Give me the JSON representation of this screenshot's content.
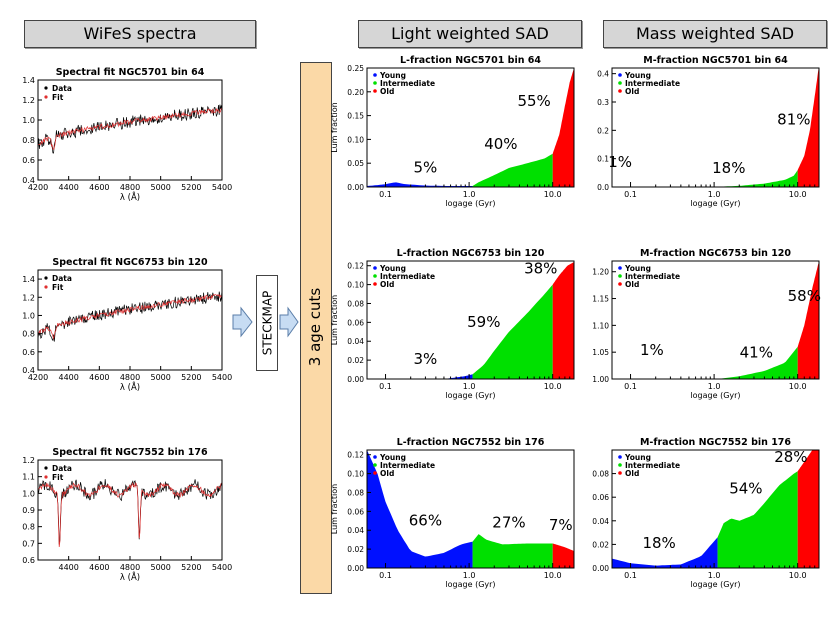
{
  "headers": {
    "spectra": "WiFeS spectra",
    "light": "Light weighted SAD",
    "mass": "Mass weighted SAD"
  },
  "side_label": "3 age cuts",
  "method_label": "STECKMAP",
  "colors": {
    "young": "#0010ff",
    "intermediate": "#00e000",
    "old": "#ff0000",
    "data": "#000000",
    "fit": "#e03030"
  },
  "chart_data": [
    {
      "id": "spec1",
      "type": "line",
      "title": "Spectral fit NGC5701 bin 64",
      "xlabel": "λ (Å)",
      "ylabel": "",
      "xlim": [
        4200,
        5400
      ],
      "ylim": [
        0.4,
        1.4
      ],
      "xticks": [
        4200,
        4400,
        4600,
        4800,
        5000,
        5200,
        5400
      ],
      "yticks": [
        0.4,
        0.6,
        0.8,
        1.0,
        1.2,
        1.4
      ],
      "yfmt": 1,
      "legend": [
        "Data",
        "Fit"
      ],
      "seed": 1,
      "features": []
    },
    {
      "id": "spec2",
      "type": "line",
      "title": "Spectral fit NGC6753 bin 120",
      "xlabel": "λ (Å)",
      "ylabel": "",
      "xlim": [
        4200,
        5400
      ],
      "ylim": [
        0.4,
        1.5
      ],
      "xticks": [
        4200,
        4400,
        4600,
        4800,
        5000,
        5200,
        5400
      ],
      "yticks": [
        0.4,
        0.6,
        0.8,
        1.0,
        1.2,
        1.4
      ],
      "yfmt": 1,
      "legend": [
        "Data",
        "Fit"
      ],
      "seed": 2,
      "features": []
    },
    {
      "id": "spec3",
      "type": "line",
      "title": "Spectral fit NGC7552 bin 176",
      "xlabel": "λ (Å)",
      "ylabel": "",
      "xlim": [
        4200,
        5400
      ],
      "ylim": [
        0.6,
        1.2
      ],
      "xticks": [
        4400,
        4600,
        4800,
        5000,
        5200,
        5400
      ],
      "yticks": [
        0.6,
        0.7,
        0.8,
        0.9,
        1.0,
        1.1,
        1.2
      ],
      "yfmt": 1,
      "legend": [
        "Data",
        "Fit"
      ],
      "seed": 3,
      "features": [
        4340,
        4861
      ]
    },
    {
      "id": "L1",
      "type": "area",
      "title": "L-fraction NGC5701 bin 64",
      "xlabel": "logage (Gyr)",
      "ylabel": "Lum fraction",
      "ylim": [
        0,
        0.25
      ],
      "yticks": [
        0,
        0.05,
        0.1,
        0.15,
        0.2,
        0.25
      ],
      "yfmt": 2,
      "legend": [
        "Young",
        "Intermediate",
        "Old"
      ],
      "curve": [
        [
          0.06,
          0.002
        ],
        [
          0.08,
          0.004
        ],
        [
          0.1,
          0.006
        ],
        [
          0.13,
          0.01
        ],
        [
          0.17,
          0.006
        ],
        [
          0.3,
          0.003
        ],
        [
          0.6,
          0.002
        ],
        [
          1.1,
          0.002
        ],
        [
          1.3,
          0.01
        ],
        [
          2,
          0.025
        ],
        [
          3,
          0.04
        ],
        [
          5,
          0.05
        ],
        [
          8,
          0.06
        ],
        [
          10,
          0.07
        ],
        [
          12,
          0.11
        ],
        [
          14,
          0.17
        ],
        [
          16,
          0.22
        ],
        [
          18,
          0.25
        ]
      ],
      "percentages": [
        {
          "text": "5%",
          "x": 0.3,
          "y": 0.03
        },
        {
          "text": "40%",
          "x": 2.4,
          "y": 0.08
        },
        {
          "text": "55%",
          "x": 6,
          "y": 0.17
        }
      ]
    },
    {
      "id": "M1",
      "type": "area",
      "title": "M-fraction NGC5701 bin 64",
      "xlabel": "logage (Gyr)",
      "ylabel": "",
      "ylim": [
        0,
        0.42
      ],
      "yticks": [
        0,
        0.1,
        0.2,
        0.3,
        0.4
      ],
      "yfmt": 1,
      "legend": [
        "Young",
        "Intermediate",
        "Old"
      ],
      "curve": [
        [
          0.06,
          0.0
        ],
        [
          1.1,
          0.001
        ],
        [
          2,
          0.004
        ],
        [
          4,
          0.012
        ],
        [
          7,
          0.025
        ],
        [
          9,
          0.04
        ],
        [
          10,
          0.06
        ],
        [
          12,
          0.11
        ],
        [
          14,
          0.2
        ],
        [
          16,
          0.32
        ],
        [
          18,
          0.43
        ]
      ],
      "percentages": [
        {
          "text": "1%",
          "x": 0.075,
          "y": 0.07
        },
        {
          "text": "18%",
          "x": 1.5,
          "y": 0.05
        },
        {
          "text": "81%",
          "x": 9,
          "y": 0.22
        }
      ]
    },
    {
      "id": "L2",
      "type": "area",
      "title": "L-fraction NGC6753 bin 120",
      "xlabel": "logage (Gyr)",
      "ylabel": "Lum fraction",
      "ylim": [
        0,
        0.125
      ],
      "yticks": [
        0,
        0.02,
        0.04,
        0.06,
        0.08,
        0.1,
        0.12
      ],
      "yfmt": 2,
      "legend": [
        "Young",
        "Intermediate",
        "Old"
      ],
      "curve": [
        [
          0.06,
          0.0
        ],
        [
          0.5,
          0.0
        ],
        [
          0.9,
          0.003
        ],
        [
          1.1,
          0.005
        ],
        [
          1.5,
          0.015
        ],
        [
          2,
          0.03
        ],
        [
          3,
          0.05
        ],
        [
          5,
          0.07
        ],
        [
          8,
          0.09
        ],
        [
          10,
          0.1
        ],
        [
          12,
          0.11
        ],
        [
          15,
          0.12
        ],
        [
          18,
          0.124
        ]
      ],
      "percentages": [
        {
          "text": "3%",
          "x": 0.3,
          "y": 0.016
        },
        {
          "text": "59%",
          "x": 1.5,
          "y": 0.055
        },
        {
          "text": "38%",
          "x": 7.2,
          "y": 0.112
        }
      ]
    },
    {
      "id": "M2",
      "type": "area",
      "title": "M-fraction NGC6753 bin 120",
      "xlabel": "logage (Gyr)",
      "ylabel": "",
      "ylim": [
        1.0,
        1.22
      ],
      "yticks": [
        1.0,
        1.05,
        1.1,
        1.15,
        1.2
      ],
      "yfmt": 2,
      "legend": [
        "Young",
        "Intermediate",
        "Old"
      ],
      "curve": [
        [
          0.06,
          1.0
        ],
        [
          1.1,
          1.0
        ],
        [
          2,
          1.005
        ],
        [
          4,
          1.015
        ],
        [
          7,
          1.03
        ],
        [
          10,
          1.06
        ],
        [
          12,
          1.1
        ],
        [
          15,
          1.17
        ],
        [
          18,
          1.22
        ]
      ],
      "percentages": [
        {
          "text": "1%",
          "x": 0.18,
          "y": 1.045
        },
        {
          "text": "41%",
          "x": 3.2,
          "y": 1.04
        },
        {
          "text": "58%",
          "x": 12,
          "y": 1.145
        }
      ]
    },
    {
      "id": "L3",
      "type": "area",
      "title": "L-fraction NGC7552 bin 176",
      "xlabel": "logage (Gyr)",
      "ylabel": "Lum fraction",
      "ylim": [
        0,
        0.125
      ],
      "yticks": [
        0,
        0.02,
        0.04,
        0.06,
        0.08,
        0.1,
        0.12
      ],
      "yfmt": 2,
      "legend": [
        "Young",
        "Intermediate",
        "Old"
      ],
      "curve": [
        [
          0.06,
          0.125
        ],
        [
          0.08,
          0.1
        ],
        [
          0.1,
          0.07
        ],
        [
          0.14,
          0.04
        ],
        [
          0.2,
          0.018
        ],
        [
          0.3,
          0.012
        ],
        [
          0.5,
          0.016
        ],
        [
          0.8,
          0.025
        ],
        [
          1.1,
          0.028
        ],
        [
          1.3,
          0.036
        ],
        [
          1.6,
          0.03
        ],
        [
          2.5,
          0.025
        ],
        [
          5,
          0.026
        ],
        [
          10,
          0.026
        ],
        [
          14,
          0.022
        ],
        [
          18,
          0.018
        ]
      ],
      "percentages": [
        {
          "text": "66%",
          "x": 0.3,
          "y": 0.045
        },
        {
          "text": "27%",
          "x": 3,
          "y": 0.043
        },
        {
          "text": "7%",
          "x": 12.5,
          "y": 0.04
        }
      ]
    },
    {
      "id": "M3",
      "type": "area",
      "title": "M-fraction NGC7552 bin 176",
      "xlabel": "logage (Gyr)",
      "ylabel": "",
      "ylim": [
        0,
        0.1
      ],
      "yticks": [
        0,
        0.02,
        0.04,
        0.06,
        0.08
      ],
      "yfmt": 2,
      "legend": [
        "Young",
        "Intermediate",
        "Old"
      ],
      "curve": [
        [
          0.06,
          0.008
        ],
        [
          0.1,
          0.004
        ],
        [
          0.2,
          0.002
        ],
        [
          0.4,
          0.003
        ],
        [
          0.7,
          0.01
        ],
        [
          1.1,
          0.026
        ],
        [
          1.3,
          0.038
        ],
        [
          1.6,
          0.042
        ],
        [
          2,
          0.04
        ],
        [
          3,
          0.045
        ],
        [
          4,
          0.055
        ],
        [
          6,
          0.07
        ],
        [
          9,
          0.08
        ],
        [
          10,
          0.082
        ],
        [
          12,
          0.09
        ],
        [
          15,
          0.1
        ],
        [
          18,
          0.1
        ]
      ],
      "percentages": [
        {
          "text": "18%",
          "x": 0.22,
          "y": 0.017
        },
        {
          "text": "54%",
          "x": 2.4,
          "y": 0.063
        },
        {
          "text": "28%",
          "x": 8.3,
          "y": 0.09
        }
      ]
    }
  ]
}
